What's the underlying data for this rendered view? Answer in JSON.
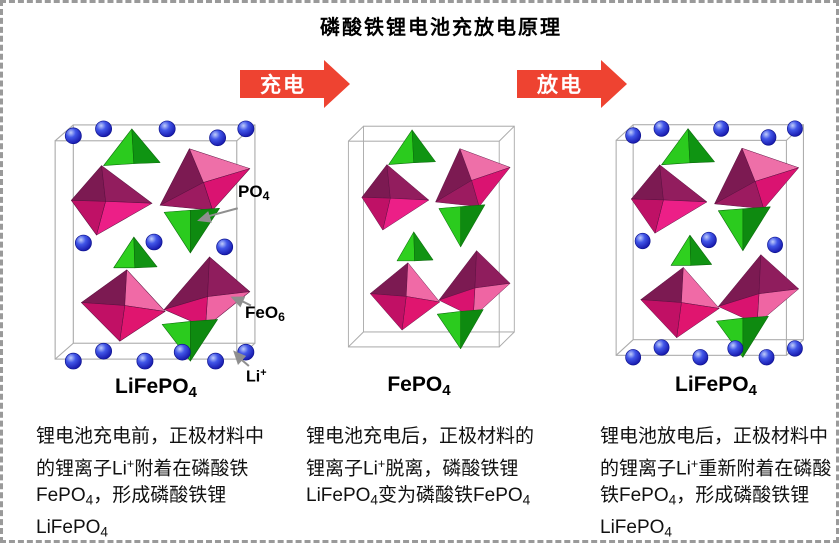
{
  "title": "磷酸铁锂电池充放电原理",
  "arrows": {
    "charge": "充电",
    "discharge": "放电"
  },
  "structures": {
    "left": {
      "label": [
        {
          "t": "LiFePO"
        },
        {
          "t": "4",
          "s": "sub"
        }
      ],
      "has_li_ions": true
    },
    "middle": {
      "label": [
        {
          "t": "FePO"
        },
        {
          "t": "4",
          "s": "sub"
        }
      ],
      "has_li_ions": false
    },
    "right": {
      "label": [
        {
          "t": "LiFePO"
        },
        {
          "t": "4",
          "s": "sub"
        }
      ],
      "has_li_ions": true
    }
  },
  "annotations": {
    "po4": [
      {
        "t": "PO"
      },
      {
        "t": "4",
        "s": "sub"
      }
    ],
    "feo6": [
      {
        "t": "FeO"
      },
      {
        "t": "6",
        "s": "sub"
      }
    ],
    "li": [
      {
        "t": "Li"
      },
      {
        "t": "+",
        "s": "sup"
      }
    ]
  },
  "captions": {
    "before_charge": [
      {
        "t": "锂电池充电前，正极材料中的锂离子Li"
      },
      {
        "t": "+",
        "s": "sup"
      },
      {
        "t": "附着在磷酸铁FePO"
      },
      {
        "t": "4",
        "s": "sub"
      },
      {
        "t": "，形成磷酸铁锂LiFePO"
      },
      {
        "t": "4",
        "s": "sub"
      }
    ],
    "after_charge": [
      {
        "t": "锂电池充电后，正极材料的锂离子Li"
      },
      {
        "t": "+",
        "s": "sup"
      },
      {
        "t": "脱离，磷酸铁锂LiFePO"
      },
      {
        "t": "4",
        "s": "sub"
      },
      {
        "t": "变为磷酸铁FePO"
      },
      {
        "t": "4",
        "s": "sub"
      }
    ],
    "after_discharge": [
      {
        "t": "锂电池放电后，正极材料中的锂离子Li"
      },
      {
        "t": "+",
        "s": "sup"
      },
      {
        "t": "重新附着在磷酸铁FePO"
      },
      {
        "t": "4",
        "s": "sub"
      },
      {
        "t": "，形成磷酸铁锂LiFePO"
      },
      {
        "t": "4",
        "s": "sub"
      }
    ]
  },
  "colors": {
    "arrow": "#ee4331",
    "border": "#9a9a9a",
    "feo6_octahedron_dark": "#7c1a52",
    "feo6_octahedron_hot_pink": "#e0156f",
    "feo6_octahedron_light_pink": "#ee6fa8",
    "po4_tetrahedron_light": "#2bcb1e",
    "po4_tetrahedron_dark": "#0e8a10",
    "li_ion_blue": "#2228d8",
    "annotation_arrow": "#8f8f8f"
  }
}
